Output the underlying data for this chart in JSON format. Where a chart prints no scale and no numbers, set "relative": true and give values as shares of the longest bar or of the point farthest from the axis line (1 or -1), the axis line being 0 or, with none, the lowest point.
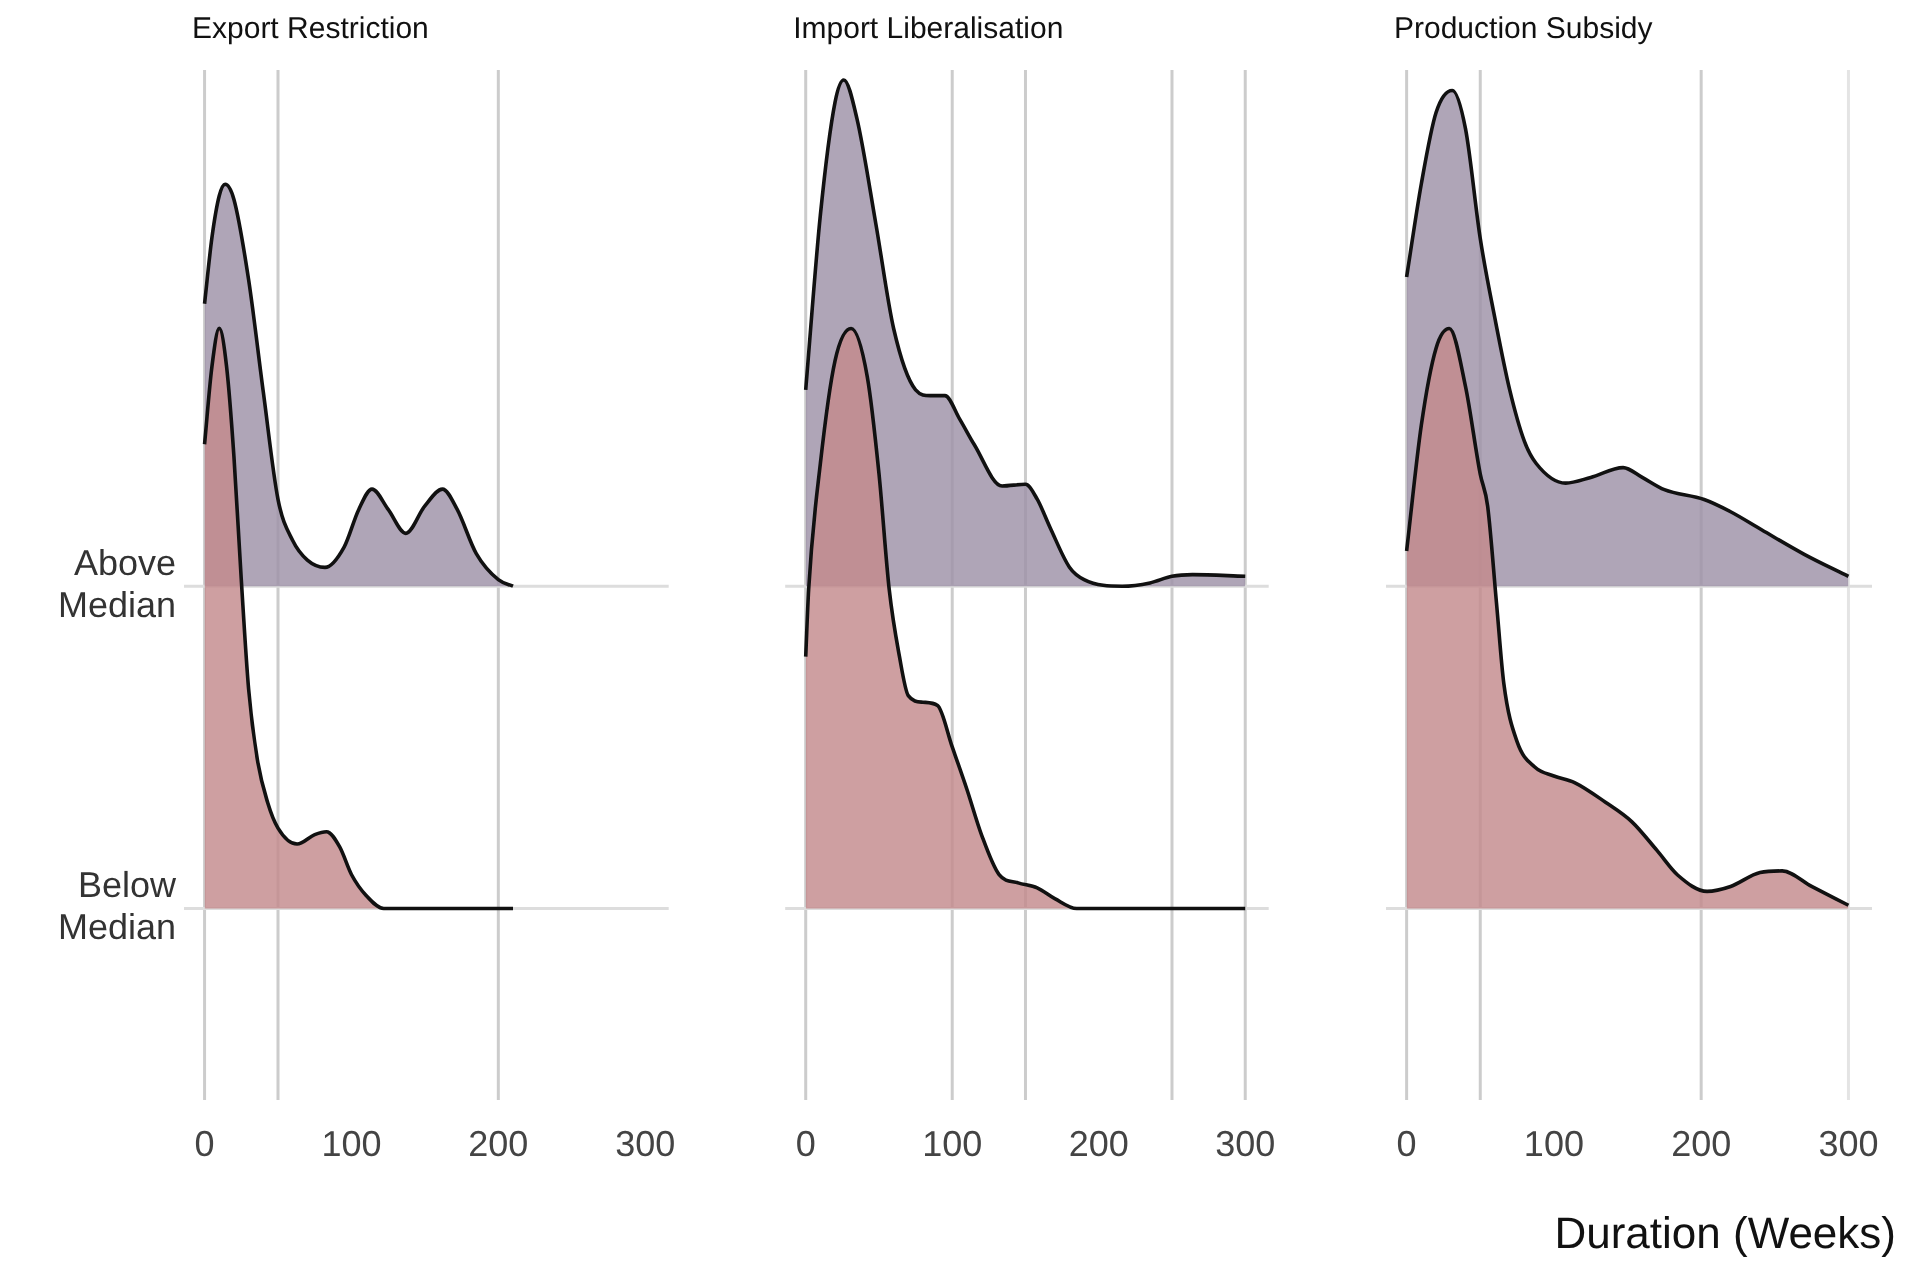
{
  "chart_data": [
    {
      "type": "area",
      "title": "Export Restriction",
      "relative": true,
      "xlim": [
        -14,
        316
      ],
      "xticks": [
        0,
        100,
        200,
        300
      ],
      "grid": false,
      "legend": false,
      "ref_lines": [
        {
          "axis": "x",
          "value": 0,
          "color": "#cccccc"
        },
        {
          "axis": "x",
          "value": 50,
          "color": "#cccccc"
        },
        {
          "axis": "x",
          "value": 200,
          "color": "#cccccc"
        },
        {
          "axis": "y",
          "value": 0.445,
          "color": "#dddddd"
        }
      ],
      "series": [
        {
          "name": "Above Median",
          "color": "#9e91a7",
          "x": [
            0,
            5,
            10,
            14,
            20,
            30,
            40,
            50,
            60,
            70,
            82,
            95,
            105,
            114,
            125,
            137,
            150,
            162,
            172,
            185,
            200,
            210
          ],
          "values": [
            0.835,
            0.926,
            0.984,
            1,
            0.979,
            0.868,
            0.713,
            0.565,
            0.508,
            0.481,
            0.471,
            0.499,
            0.551,
            0.579,
            0.551,
            0.518,
            0.556,
            0.579,
            0.551,
            0.49,
            0.454,
            0.445
          ]
        },
        {
          "name": "Below Median",
          "color": "#c38a8c",
          "x": [
            0,
            5,
            10,
            15,
            20,
            25,
            30,
            36,
            43,
            50,
            63,
            75,
            83,
            92,
            100,
            110,
            122,
            150,
            210
          ],
          "values": [
            0.641,
            0.748,
            0.801,
            0.748,
            0.624,
            0.454,
            0.303,
            0.205,
            0.146,
            0.111,
            0.089,
            0.102,
            0.106,
            0.085,
            0.047,
            0.018,
            0,
            0,
            0
          ]
        }
      ]
    },
    {
      "type": "area",
      "title": "Import Liberalisation",
      "relative": true,
      "xlim": [
        -14,
        316
      ],
      "xticks": [
        0,
        100,
        200,
        300
      ],
      "grid": false,
      "legend": false,
      "ref_lines": [
        {
          "axis": "x",
          "value": 0,
          "color": "#cccccc"
        },
        {
          "axis": "x",
          "value": 100,
          "color": "#cccccc"
        },
        {
          "axis": "x",
          "value": 150,
          "color": "#cccccc"
        },
        {
          "axis": "x",
          "value": 250,
          "color": "#cccccc"
        },
        {
          "axis": "x",
          "value": 300,
          "color": "#cccccc"
        },
        {
          "axis": "y",
          "value": 0.389,
          "color": "#dddddd"
        }
      ],
      "series": [
        {
          "color": "#9e91a7",
          "x": [
            0,
            10,
            20,
            26,
            35,
            48,
            60,
            75,
            85,
            95,
            105,
            115,
            134,
            150,
            158,
            167,
            180,
            190,
            216,
            235,
            250,
            264,
            300
          ],
          "values": [
            0.626,
            0.837,
            0.973,
            1.0,
            0.953,
            0.825,
            0.7,
            0.626,
            0.619,
            0.619,
            0.591,
            0.56,
            0.51,
            0.512,
            0.494,
            0.459,
            0.412,
            0.397,
            0.389,
            0.393,
            0.401,
            0.403,
            0.401
          ]
        },
        {
          "color": "#c38a8c",
          "x": [
            0,
            2,
            10,
            20,
            31,
            42,
            50,
            57,
            64,
            70,
            80,
            90,
            100,
            110,
            120,
            132,
            145,
            158,
            170,
            185,
            300
          ],
          "values": [
            0.304,
            0.385,
            0.537,
            0.661,
            0.7,
            0.642,
            0.525,
            0.385,
            0.304,
            0.257,
            0.249,
            0.245,
            0.195,
            0.144,
            0.089,
            0.041,
            0.031,
            0.025,
            0.012,
            0,
            0
          ]
        }
      ]
    },
    {
      "type": "area",
      "title": "Production Subsidy",
      "xlabel": "Duration (Weeks)",
      "relative": true,
      "xlim": [
        -14,
        316
      ],
      "xticks": [
        0,
        100,
        200,
        300
      ],
      "grid": false,
      "legend": false,
      "ref_lines": [
        {
          "axis": "x",
          "value": 0,
          "color": "#cccccc"
        },
        {
          "axis": "x",
          "value": 50,
          "color": "#cccccc"
        },
        {
          "axis": "x",
          "value": 200,
          "color": "#cccccc"
        },
        {
          "axis": "x",
          "value": 300,
          "color": "#e4e4e4"
        },
        {
          "axis": "y",
          "value": 0.394,
          "color": "#dddddd"
        }
      ],
      "series": [
        {
          "color": "#9e91a7",
          "x": [
            0,
            10,
            20,
            31,
            40,
            50,
            60,
            70,
            80,
            88,
            108,
            125,
            147,
            160,
            175,
            202,
            220,
            241,
            270,
            300
          ],
          "values": [
            0.772,
            0.886,
            0.973,
            1,
            0.953,
            0.819,
            0.721,
            0.634,
            0.571,
            0.544,
            0.52,
            0.527,
            0.539,
            0.527,
            0.512,
            0.5,
            0.485,
            0.463,
            0.433,
            0.406
          ]
        },
        {
          "color": "#c38a8c",
          "x": [
            0,
            10,
            20,
            29,
            40,
            50,
            55,
            61,
            66,
            75,
            87,
            100,
            114,
            135,
            153,
            170,
            184,
            204,
            220,
            240,
            255,
            275,
            300
          ],
          "values": [
            0.437,
            0.591,
            0.685,
            0.709,
            0.638,
            0.531,
            0.492,
            0.374,
            0.275,
            0.204,
            0.173,
            0.162,
            0.154,
            0.13,
            0.106,
            0.071,
            0.041,
            0.021,
            0.027,
            0.044,
            0.046,
            0.027,
            0.004
          ]
        }
      ]
    }
  ]
}
